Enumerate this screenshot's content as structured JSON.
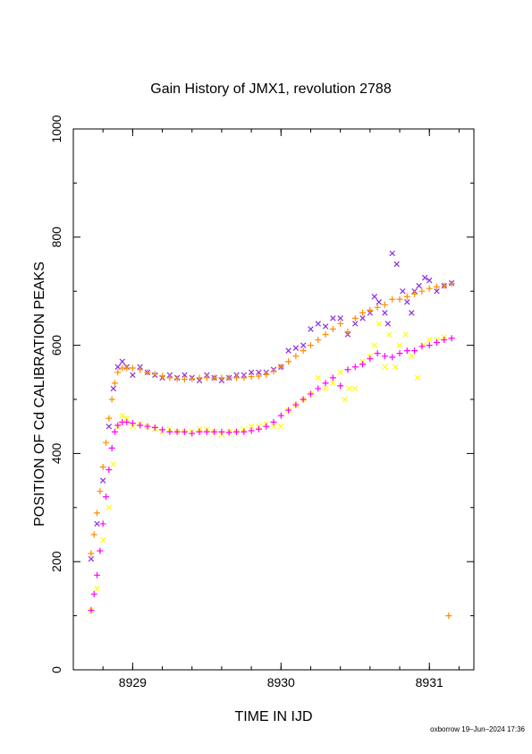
{
  "chart_data": {
    "type": "scatter",
    "title": "Gain History of JMX1, revolution 2788",
    "xlabel": "TIME IN IJD",
    "ylabel": "POSITION OF Cd CALIBRATION PEAKS",
    "xlim": [
      8928.6,
      8931.3
    ],
    "ylim": [
      0,
      1000
    ],
    "x_ticks": [
      8929,
      8930,
      8931
    ],
    "y_ticks": [
      0,
      200,
      400,
      600,
      800,
      1000
    ],
    "x_tick_labels": [
      "8929",
      "8930",
      "8931"
    ],
    "y_tick_labels": [
      "0",
      "200",
      "400",
      "600",
      "800",
      "1000"
    ],
    "grid": false,
    "series": [
      {
        "marker": "x",
        "color": "#8a2be2",
        "x": [
          8928.72,
          8928.76,
          8928.8,
          8928.84,
          8928.87,
          8928.9,
          8928.93,
          8928.96,
          8929.0,
          8929.05,
          8929.1,
          8929.15,
          8929.2,
          8929.25,
          8929.3,
          8929.35,
          8929.4,
          8929.45,
          8929.5,
          8929.55,
          8929.6,
          8929.65,
          8929.7,
          8929.75,
          8929.8,
          8929.85,
          8929.9,
          8929.95,
          8930.0,
          8930.05,
          8930.1,
          8930.15,
          8930.2,
          8930.25,
          8930.3,
          8930.35,
          8930.4,
          8930.45,
          8930.5,
          8930.55,
          8930.6,
          8930.63,
          8930.66,
          8930.7,
          8930.72,
          8930.75,
          8930.78,
          8930.82,
          8930.85,
          8930.88,
          8930.9,
          8930.93,
          8930.97,
          8931.0,
          8931.05,
          8931.1,
          8931.15
        ],
        "y": [
          205,
          270,
          350,
          450,
          520,
          560,
          570,
          560,
          545,
          560,
          550,
          545,
          540,
          545,
          540,
          545,
          540,
          535,
          545,
          540,
          535,
          540,
          545,
          545,
          550,
          550,
          550,
          555,
          560,
          590,
          595,
          600,
          630,
          640,
          635,
          650,
          650,
          620,
          640,
          650,
          660,
          690,
          680,
          660,
          640,
          770,
          750,
          700,
          680,
          660,
          700,
          710,
          725,
          720,
          700,
          710,
          715
        ]
      },
      {
        "marker": "x",
        "color": "#ffff00",
        "x": [
          8928.72,
          8928.76,
          8928.8,
          8928.84,
          8928.87,
          8928.9,
          8928.93,
          8928.96,
          8929.0,
          8929.05,
          8929.1,
          8929.15,
          8929.2,
          8929.25,
          8929.3,
          8929.35,
          8929.4,
          8929.45,
          8929.5,
          8929.55,
          8929.6,
          8929.65,
          8929.7,
          8929.75,
          8929.8,
          8929.85,
          8929.9,
          8929.95,
          8930.0,
          8930.05,
          8930.1,
          8930.15,
          8930.2,
          8930.25,
          8930.3,
          8930.35,
          8930.4,
          8930.43,
          8930.46,
          8930.5,
          8930.55,
          8930.6,
          8930.63,
          8930.66,
          8930.7,
          8930.73,
          8930.77,
          8930.8,
          8930.84,
          8930.88,
          8930.92,
          8930.96,
          8931.0,
          8931.05,
          8931.1
        ],
        "y": [
          110,
          150,
          240,
          300,
          380,
          450,
          470,
          465,
          450,
          455,
          450,
          445,
          440,
          445,
          440,
          440,
          440,
          445,
          445,
          440,
          435,
          440,
          440,
          445,
          450,
          450,
          455,
          450,
          450,
          480,
          490,
          500,
          510,
          540,
          520,
          530,
          550,
          500,
          520,
          520,
          570,
          580,
          600,
          640,
          560,
          620,
          560,
          600,
          620,
          580,
          540,
          600,
          610,
          610,
          615
        ]
      },
      {
        "marker": "+",
        "color": "#ff8c00",
        "x": [
          8928.72,
          8928.74,
          8928.76,
          8928.78,
          8928.8,
          8928.82,
          8928.84,
          8928.86,
          8928.88,
          8928.9,
          8928.93,
          8928.96,
          8929.0,
          8929.05,
          8929.1,
          8929.15,
          8929.2,
          8929.25,
          8929.3,
          8929.35,
          8929.4,
          8929.45,
          8929.5,
          8929.55,
          8929.6,
          8929.65,
          8929.7,
          8929.75,
          8929.8,
          8929.85,
          8929.9,
          8929.95,
          8930.0,
          8930.05,
          8930.1,
          8930.15,
          8930.2,
          8930.25,
          8930.3,
          8930.35,
          8930.4,
          8930.45,
          8930.5,
          8930.55,
          8930.6,
          8930.65,
          8930.7,
          8930.75,
          8930.8,
          8930.85,
          8930.9,
          8930.95,
          8931.0,
          8931.05,
          8931.1,
          8931.15,
          8931.13
        ],
        "y": [
          215,
          250,
          290,
          330,
          375,
          420,
          465,
          500,
          530,
          550,
          558,
          558,
          558,
          555,
          550,
          547,
          543,
          540,
          538,
          537,
          538,
          540,
          540,
          540,
          540,
          540,
          540,
          540,
          542,
          543,
          546,
          552,
          560,
          570,
          580,
          590,
          600,
          610,
          620,
          630,
          640,
          625,
          650,
          660,
          665,
          670,
          675,
          685,
          685,
          690,
          695,
          700,
          705,
          708,
          710,
          714,
          100
        ]
      },
      {
        "marker": "+",
        "color": "#ff00ff",
        "x": [
          8928.72,
          8928.74,
          8928.76,
          8928.78,
          8928.8,
          8928.82,
          8928.84,
          8928.86,
          8928.88,
          8928.9,
          8928.93,
          8928.96,
          8929.0,
          8929.05,
          8929.1,
          8929.15,
          8929.2,
          8929.25,
          8929.3,
          8929.35,
          8929.4,
          8929.45,
          8929.5,
          8929.55,
          8929.6,
          8929.65,
          8929.7,
          8929.75,
          8929.8,
          8929.85,
          8929.9,
          8929.95,
          8930.0,
          8930.05,
          8930.1,
          8930.15,
          8930.2,
          8930.25,
          8930.3,
          8930.35,
          8930.4,
          8930.45,
          8930.5,
          8930.55,
          8930.6,
          8930.65,
          8930.7,
          8930.75,
          8930.8,
          8930.85,
          8930.9,
          8930.95,
          8931.0,
          8931.05,
          8931.1,
          8931.15
        ],
        "y": [
          110,
          140,
          175,
          220,
          270,
          320,
          370,
          410,
          440,
          452,
          458,
          458,
          456,
          452,
          450,
          448,
          444,
          440,
          440,
          440,
          437,
          440,
          440,
          440,
          440,
          439,
          440,
          440,
          442,
          445,
          450,
          458,
          470,
          480,
          490,
          500,
          510,
          520,
          530,
          540,
          525,
          555,
          560,
          565,
          575,
          585,
          580,
          578,
          585,
          590,
          590,
          598,
          600,
          605,
          610,
          613
        ]
      }
    ],
    "credit": "oxborrow 19–Jun–2024 17:36"
  }
}
